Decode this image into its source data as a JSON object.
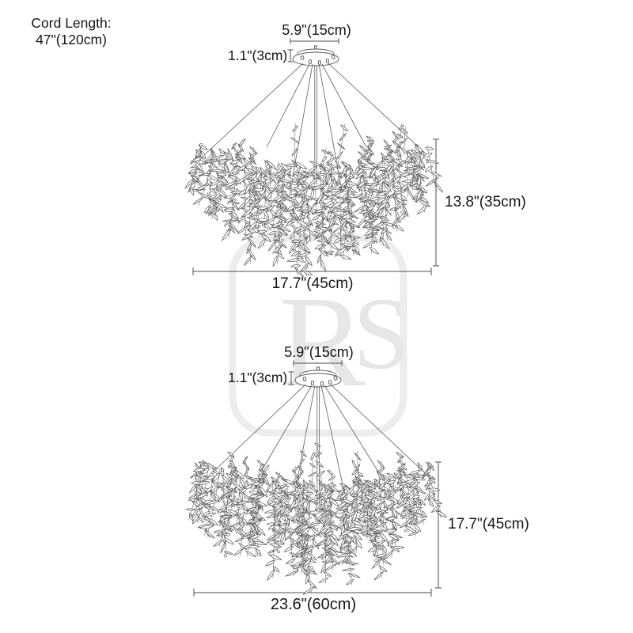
{
  "cord_note": {
    "title": "Cord Length:",
    "value": "47\"(120cm)"
  },
  "watermark": {
    "text": "RS",
    "letter1": "R",
    "letter2": "S"
  },
  "top_diagram": {
    "canopy_width": "5.9\"(15cm)",
    "canopy_height": "1.1\"(3cm)",
    "fixture_height": "13.8\"(35cm)",
    "fixture_width": "17.7\"(45cm)"
  },
  "bottom_diagram": {
    "canopy_width": "5.9\"(15cm)",
    "canopy_height": "1.1\"(3cm)",
    "fixture_height": "17.7\"(45cm)",
    "fixture_width": "23.6\"(60cm)"
  },
  "colors": {
    "dimension_line": "#4f4f4f",
    "sketch_stroke": "#585858",
    "branch_stroke": "#6b6b6b",
    "text": "#161616",
    "watermark_gray": "#e7e7e7",
    "watermark_frame": "#ededed"
  }
}
